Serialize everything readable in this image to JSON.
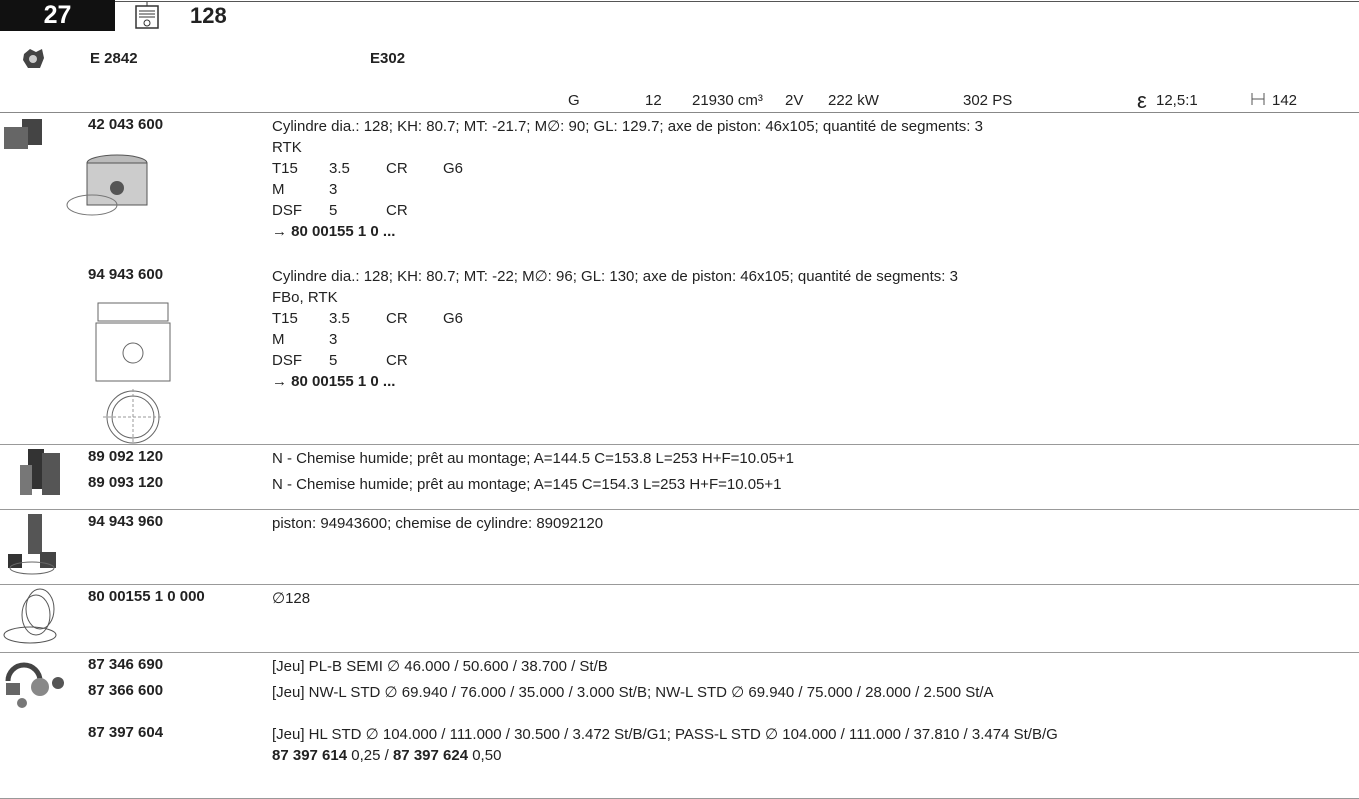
{
  "header": {
    "page": "27",
    "bore": "128",
    "engine": "E 2842",
    "code": "E302",
    "specs": [
      "G",
      "12",
      "21930 cm³",
      "2V",
      "222 kW",
      "302 PS"
    ],
    "compression_symbol": "ε",
    "compression": "12,5:1",
    "length": "142"
  },
  "sections": [
    {
      "items": [
        {
          "number": "42 043 600",
          "description": "Cylindre dia.: 128; KH: 80.7; MT: -21.7; M∅: 90; GL: 129.7; axe de piston: 46x105; quantité de segments: 3",
          "note": "RTK",
          "rows": [
            [
              "T15",
              "3.5",
              "CR",
              "G6"
            ],
            [
              "M",
              "3"
            ],
            [
              "DSF",
              "5",
              "CR"
            ]
          ],
          "ref": "→ 80 00155 1 0 ..."
        },
        {
          "number": "94 943 600",
          "description": "Cylindre dia.: 128; KH: 80.7; MT: -22; M∅: 96; GL: 130; axe de piston: 46x105; quantité de segments: 3",
          "note": "FBo, RTK",
          "rows": [
            [
              "T15",
              "3.5",
              "CR",
              "G6"
            ],
            [
              "M",
              "3"
            ],
            [
              "DSF",
              "5",
              "CR"
            ]
          ],
          "ref": "→ 80 00155 1 0 ..."
        }
      ]
    },
    {
      "items": [
        {
          "number": "89 092 120",
          "description": "N - Chemise humide; prêt au montage; A=144.5 C=153.8 L=253 H+F=10.05+1"
        },
        {
          "number": "89 093 120",
          "description": "N - Chemise humide; prêt au montage; A=145 C=154.3 L=253 H+F=10.05+1"
        }
      ]
    },
    {
      "items": [
        {
          "number": "94 943 960",
          "description": "piston: 94943600; chemise de cylindre: 89092120"
        }
      ]
    },
    {
      "items": [
        {
          "number": "80 00155 1 0 000",
          "description": "∅128"
        }
      ]
    },
    {
      "items": [
        {
          "number": "87 346 690",
          "description": "[Jeu] PL-B SEMI ∅ 46.000 / 50.600 / 38.700 / St/B"
        },
        {
          "number": "87 366 600",
          "description": "[Jeu] NW-L STD ∅ 69.940 / 76.000 / 35.000 / 3.000 St/B; NW-L STD ∅ 69.940 / 75.000 / 28.000 / 2.500 St/A"
        },
        {
          "number": "87 397 604",
          "description": "[Jeu] HL STD ∅ 104.000 / 111.000 / 30.500 / 3.472 St/B/G1; PASS-L STD ∅ 104.000 / 111.000 / 37.810 / 3.474 St/B/G",
          "variants": [
            {
              "number": "87 397 614",
              "value": "0,25"
            },
            {
              "number": "87 397 624",
              "value": "0,50"
            }
          ],
          "separator": "/"
        }
      ]
    }
  ]
}
